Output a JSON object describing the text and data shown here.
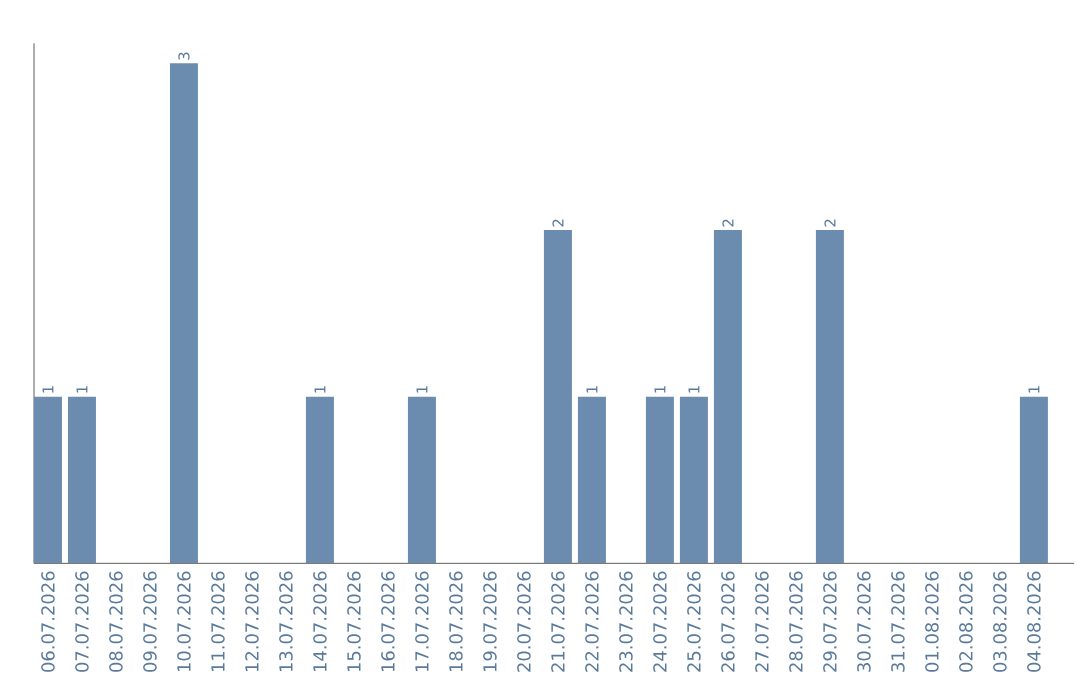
{
  "chart_data": {
    "type": "bar",
    "categories": [
      "06.07.2026",
      "07.07.2026",
      "08.07.2026",
      "09.07.2026",
      "10.07.2026",
      "11.07.2026",
      "12.07.2026",
      "13.07.2026",
      "14.07.2026",
      "15.07.2026",
      "16.07.2026",
      "17.07.2026",
      "18.07.2026",
      "19.07.2026",
      "20.07.2026",
      "21.07.2026",
      "22.07.2026",
      "23.07.2026",
      "24.07.2026",
      "25.07.2026",
      "26.07.2026",
      "27.07.2026",
      "28.07.2026",
      "29.07.2026",
      "30.07.2026",
      "31.07.2026",
      "01.08.2026",
      "02.08.2026",
      "03.08.2026",
      "04.08.2026"
    ],
    "values": [
      1,
      1,
      0,
      0,
      3,
      0,
      0,
      0,
      1,
      0,
      0,
      1,
      0,
      0,
      0,
      2,
      1,
      0,
      1,
      1,
      2,
      0,
      0,
      2,
      0,
      0,
      0,
      0,
      0,
      1
    ],
    "value_labels": [
      "1",
      "1",
      null,
      null,
      "3",
      null,
      null,
      null,
      "1",
      null,
      null,
      "1",
      null,
      null,
      null,
      "2",
      "1",
      null,
      "1",
      "1",
      "2",
      null,
      null,
      "2",
      null,
      null,
      null,
      null,
      null,
      "1"
    ],
    "color": "#6b8cae",
    "tick_labels": "x"
  }
}
